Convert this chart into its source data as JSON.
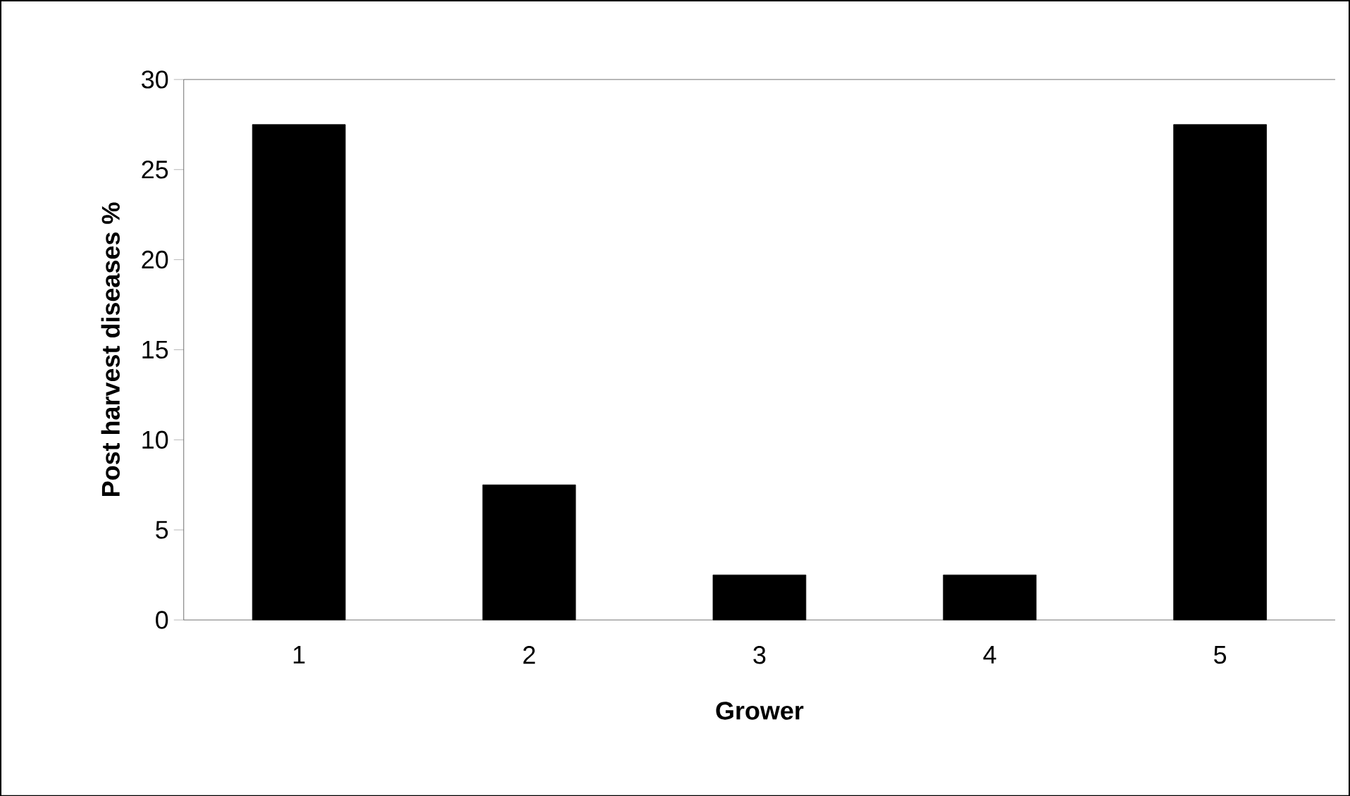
{
  "chart_data": {
    "type": "bar",
    "xlabel": "Grower",
    "ylabel": "Post harvest diseases %",
    "categories": [
      "1",
      "2",
      "3",
      "4",
      "5"
    ],
    "values": [
      27.5,
      7.5,
      2.5,
      2.5,
      27.5
    ],
    "color": "#000000",
    "ylim": [
      0,
      30
    ],
    "yticks": [
      0,
      5,
      10,
      15,
      20,
      25,
      30
    ]
  }
}
